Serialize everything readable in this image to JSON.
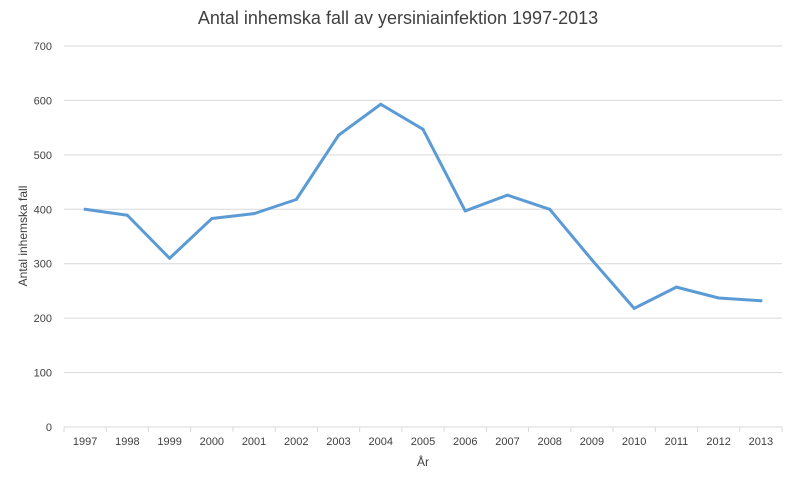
{
  "chart_data": {
    "type": "line",
    "title": "Antal inhemska fall av yersiniainfektion 1997-2013",
    "xlabel": "År",
    "ylabel": "Antal inhemska fall",
    "categories": [
      "1997",
      "1998",
      "1999",
      "2000",
      "2001",
      "2002",
      "2003",
      "2004",
      "2005",
      "2006",
      "2007",
      "2008",
      "2009",
      "2010",
      "2011",
      "2012",
      "2013"
    ],
    "series": [
      {
        "values": [
          400,
          389,
          310,
          383,
          392,
          418,
          536,
          593,
          547,
          397,
          426,
          400,
          307,
          218,
          257,
          237,
          232
        ],
        "color": "#5b9bd5"
      }
    ],
    "ylim": [
      0,
      700
    ],
    "yticks": [
      0,
      100,
      200,
      300,
      400,
      500,
      600,
      700
    ],
    "grid": true,
    "legend": "none"
  }
}
